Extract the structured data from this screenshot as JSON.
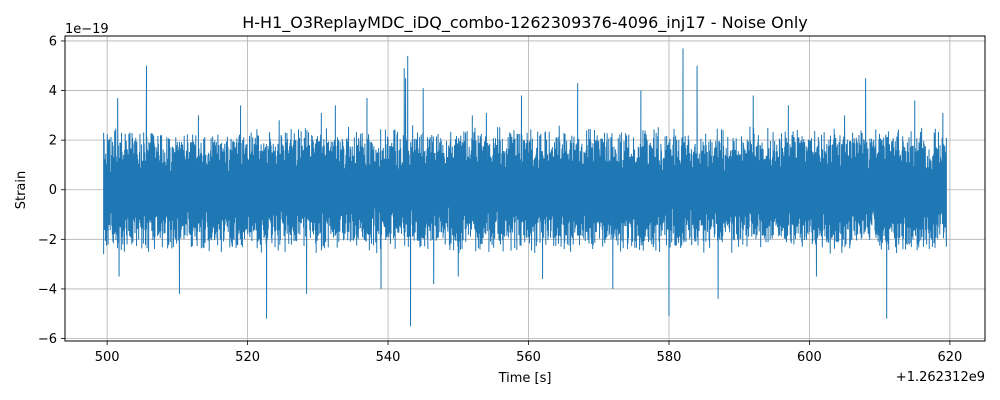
{
  "chart_data": {
    "type": "line",
    "title": "H-H1_O3ReplayMDC_iDQ_combo-1262309376-4096_inj17 - Noise Only",
    "xlabel": "Time [s]",
    "ylabel": "Strain",
    "x_offset_text": "+1.262312e9",
    "y_scale_text": "1e−19",
    "grid": true,
    "colors": {
      "line": "#1f77b4",
      "grid": "#b0b0b0",
      "axes": "#000000"
    },
    "xlim": [
      494,
      625
    ],
    "ylim": [
      -6.1,
      6.2
    ],
    "x_ticks": [
      500,
      520,
      540,
      560,
      580,
      600,
      620
    ],
    "x_tick_labels": [
      "500",
      "520",
      "540",
      "560",
      "580",
      "600",
      "620"
    ],
    "y_ticks": [
      -6,
      -4,
      -2,
      0,
      2,
      4,
      6
    ],
    "y_tick_labels": [
      "−6",
      "−4",
      "−2",
      "0",
      "2",
      "4",
      "6"
    ],
    "series": [
      {
        "values": {
          "x_range": [
            499.5,
            619.5
          ],
          "y_range": [
            -5.5,
            5.7
          ],
          "typical_band": [
            -2.3,
            2.3
          ],
          "sample_points": [
            [
              499.5,
              -2.6
            ],
            [
              499.5,
              2.3
            ],
            [
              501.5,
              3.7
            ],
            [
              501.7,
              -3.5
            ],
            [
              505.6,
              5.0
            ],
            [
              505.9,
              -2.5
            ],
            [
              510.3,
              -4.2
            ],
            [
              513.0,
              3.0
            ],
            [
              519.0,
              3.4
            ],
            [
              522.7,
              -5.2
            ],
            [
              524.5,
              2.8
            ],
            [
              528.4,
              -4.2
            ],
            [
              530.5,
              3.1
            ],
            [
              532.5,
              3.4
            ],
            [
              537.0,
              3.7
            ],
            [
              539.0,
              -4.0
            ],
            [
              542.3,
              4.9
            ],
            [
              542.5,
              4.5
            ],
            [
              542.8,
              5.4
            ],
            [
              543.2,
              -5.5
            ],
            [
              543.5,
              2.6
            ],
            [
              545.0,
              4.1
            ],
            [
              546.5,
              -3.8
            ],
            [
              550.0,
              -3.5
            ],
            [
              552.0,
              3.0
            ],
            [
              554.0,
              3.1
            ],
            [
              559.0,
              3.8
            ],
            [
              562.0,
              -3.6
            ],
            [
              567.0,
              4.3
            ],
            [
              572.0,
              -4.0
            ],
            [
              576.0,
              4.0
            ],
            [
              580.0,
              -5.1
            ],
            [
              582.0,
              5.7
            ],
            [
              584.0,
              5.0
            ],
            [
              587.0,
              -4.4
            ],
            [
              592.0,
              3.8
            ],
            [
              597.0,
              3.4
            ],
            [
              601.0,
              -3.5
            ],
            [
              605.0,
              3.0
            ],
            [
              608.0,
              4.5
            ],
            [
              611.0,
              -5.2
            ],
            [
              615.0,
              3.6
            ],
            [
              619.0,
              3.1
            ],
            [
              619.5,
              -2.3
            ]
          ]
        }
      }
    ]
  }
}
